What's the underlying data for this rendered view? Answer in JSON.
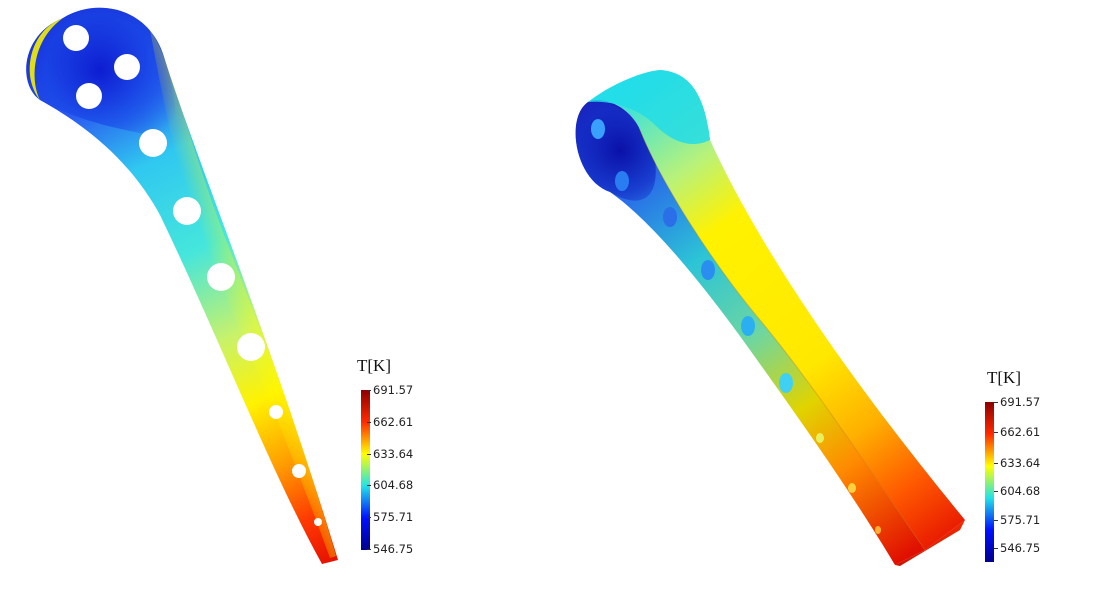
{
  "legends": [
    {
      "title": "T[K]",
      "colors": [
        "#8b0000",
        "#ff2a00",
        "#ffff00",
        "#22e3e6",
        "#0010ff",
        "#00008b"
      ],
      "ticks": [
        "691.57",
        "662.61",
        "633.64",
        "604.68",
        "575.71",
        "546.75"
      ]
    },
    {
      "title": "T[K]",
      "colors": [
        "#8b0000",
        "#ff2a00",
        "#ffff00",
        "#22e3e6",
        "#0010ff",
        "#00008b"
      ],
      "ticks": [
        "691.57",
        "662.61",
        "633.64",
        "604.68",
        "575.71",
        "546.75"
      ]
    }
  ]
}
